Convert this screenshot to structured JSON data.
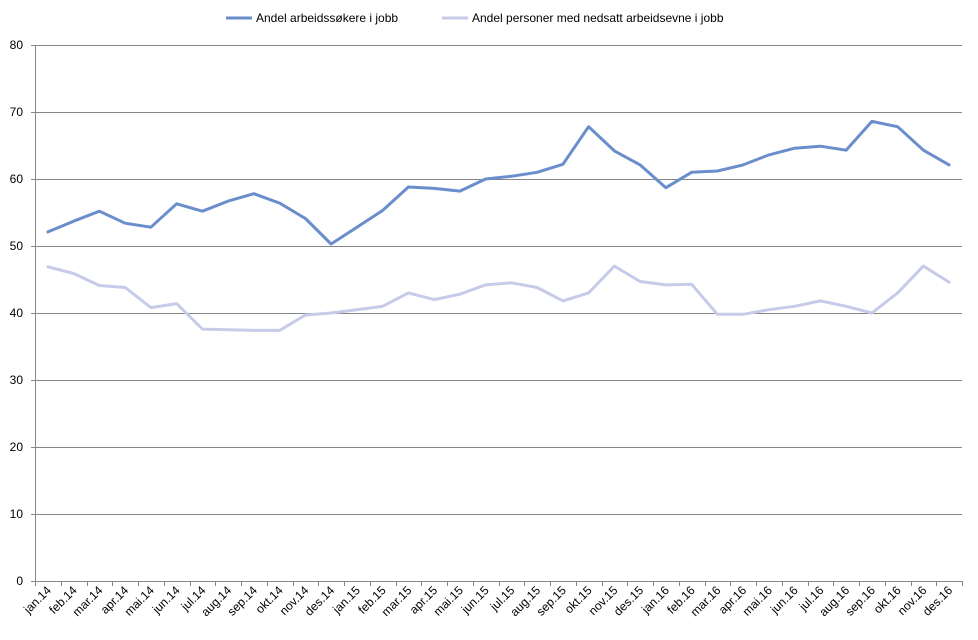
{
  "chart_data": {
    "type": "line",
    "categories": [
      "jan.14",
      "feb.14",
      "mar.14",
      "apr.14",
      "mai.14",
      "jun.14",
      "jul.14",
      "aug.14",
      "sep.14",
      "okt.14",
      "nov.14",
      "des.14",
      "jan.15",
      "feb.15",
      "mar.15",
      "apr.15",
      "mai.15",
      "jun.15",
      "jul.15",
      "aug.15",
      "sep.15",
      "okt.15",
      "nov.15",
      "des.15",
      "jan.16",
      "feb.16",
      "mar.16",
      "apr.16",
      "mai.16",
      "jun.16",
      "jul.16",
      "aug.16",
      "sep.16",
      "okt.16",
      "nov.16",
      "des.16"
    ],
    "series": [
      {
        "name": "Andel arbeidssøkere i jobb",
        "color": "#6A8DCB",
        "values": [
          52.1,
          53.7,
          55.2,
          53.4,
          52.8,
          56.3,
          55.2,
          56.7,
          57.8,
          56.4,
          54.1,
          50.3,
          52.8,
          55.3,
          58.8,
          58.6,
          58.2,
          60.0,
          60.4,
          61.0,
          62.2,
          67.8,
          64.2,
          62.1,
          58.7,
          61.0,
          61.2,
          62.1,
          63.6,
          64.6,
          64.9,
          64.3,
          68.6,
          67.8,
          64.3,
          62.1
        ]
      },
      {
        "name": "Andel personer med nedsatt arbeidsevne i jobb",
        "color": "#C6CBE9",
        "values": [
          46.9,
          45.9,
          44.1,
          43.8,
          40.8,
          41.4,
          37.6,
          37.5,
          37.4,
          37.4,
          39.7,
          40.0,
          40.5,
          41.0,
          43.0,
          42.0,
          42.8,
          44.2,
          44.5,
          43.8,
          41.8,
          43.0,
          47.0,
          44.7,
          44.2,
          44.3,
          39.8,
          39.8,
          40.5,
          41.0,
          41.8,
          41.0,
          40.0,
          43.0,
          47.0,
          44.6
        ]
      }
    ],
    "yticks": [
      "0",
      "10",
      "20",
      "30",
      "40",
      "50",
      "60",
      "70",
      "80"
    ],
    "ylim": [
      0,
      80
    ],
    "grid": true,
    "legend_position": "top",
    "axis_color": "#868686",
    "grid_color": "#868686"
  }
}
